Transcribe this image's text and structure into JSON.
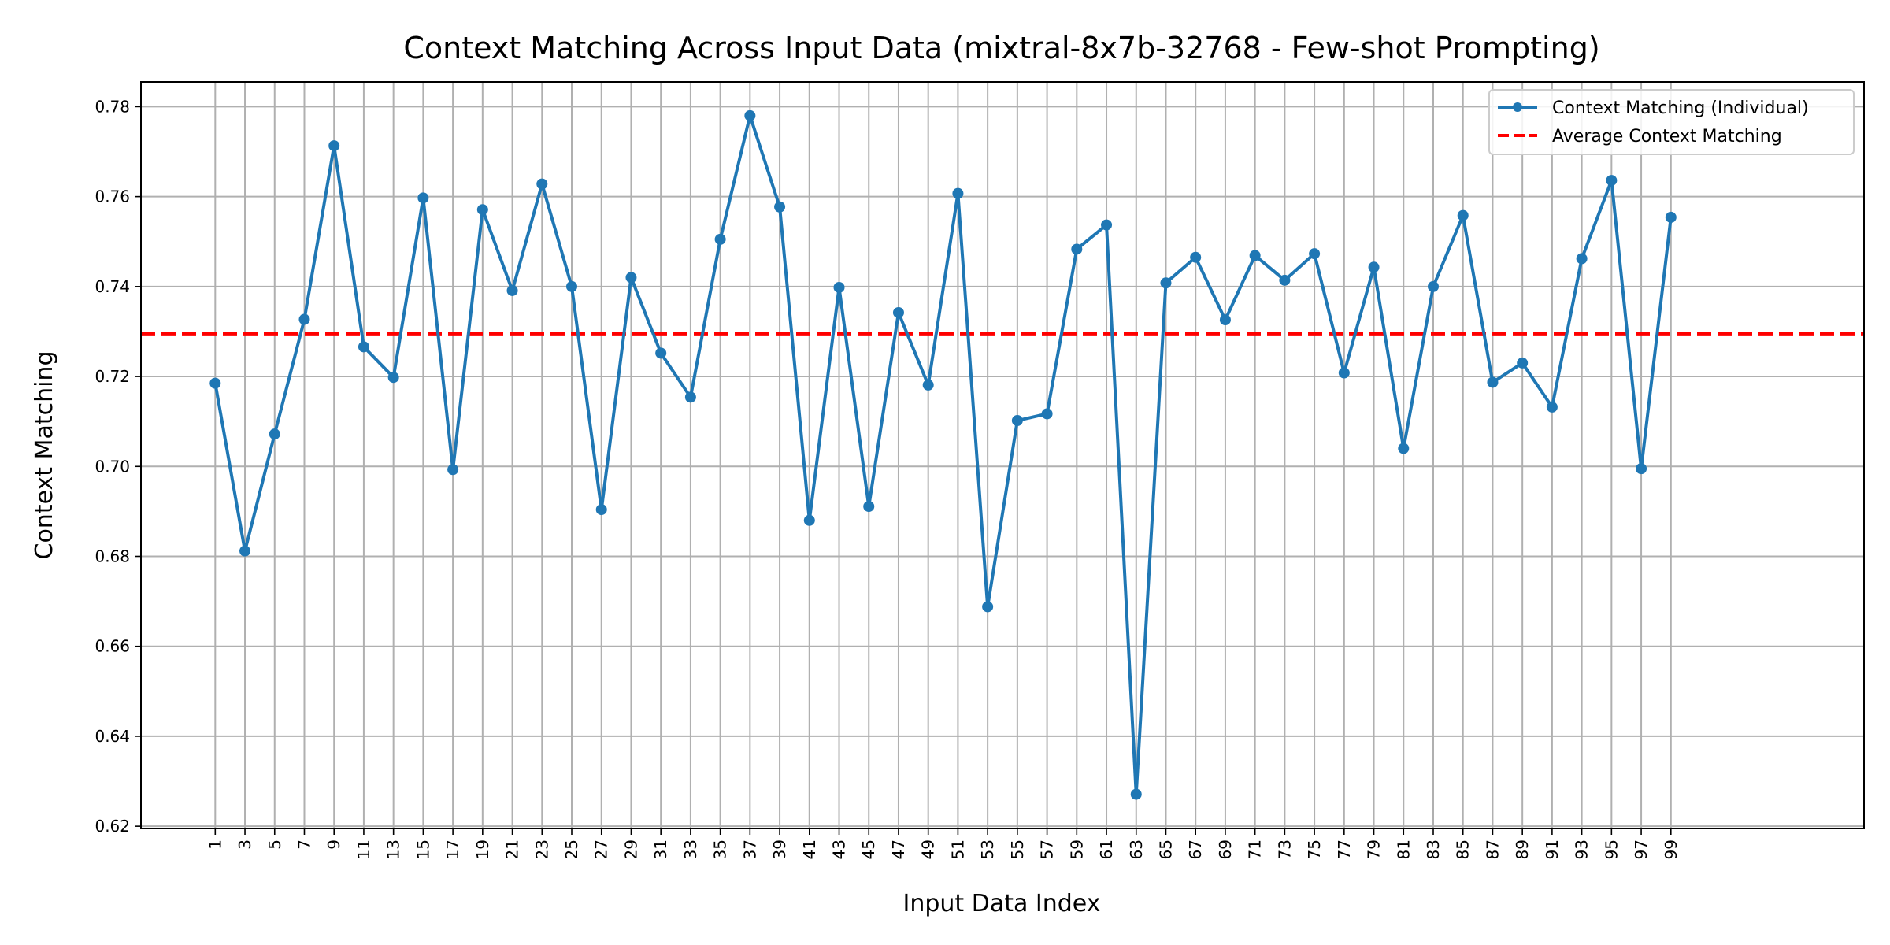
{
  "chart_data": {
    "type": "line",
    "title": "Context Matching Across Input Data (mixtral-8x7b-32768 - Few-shot Prompting)",
    "xlabel": "Input Data Index",
    "ylabel": "Context Matching",
    "x_tick_labels": [
      "1",
      "3",
      "5",
      "7",
      "9",
      "11",
      "13",
      "15",
      "17",
      "19",
      "21",
      "23",
      "25",
      "27",
      "29",
      "31",
      "33",
      "35",
      "37",
      "39",
      "41",
      "43",
      "45",
      "47",
      "49",
      "51",
      "53",
      "55",
      "57",
      "59",
      "61",
      "63",
      "65",
      "67",
      "69",
      "71",
      "73",
      "75",
      "77",
      "79",
      "81",
      "83",
      "85",
      "87",
      "89",
      "91",
      "93",
      "95",
      "97",
      "99"
    ],
    "y_tick_labels": [
      "0.62",
      "0.64",
      "0.66",
      "0.68",
      "0.70",
      "0.72",
      "0.74",
      "0.76",
      "0.78"
    ],
    "xlim": [
      -4.0,
      112.0
    ],
    "ylim": [
      0.6195,
      0.7855
    ],
    "grid": true,
    "legend_position": "top-right",
    "series": [
      {
        "name": "Context Matching (Individual)",
        "color": "#1f77b4",
        "marker": "circle",
        "x": [
          1,
          3,
          5,
          7,
          9,
          11,
          13,
          15,
          17,
          19,
          21,
          23,
          25,
          27,
          29,
          31,
          33,
          35,
          37,
          39,
          41,
          43,
          45,
          47,
          49,
          51,
          53,
          55,
          57,
          59,
          61,
          63,
          65,
          67,
          69,
          71,
          73,
          75,
          77,
          79,
          81,
          83,
          85,
          87,
          89,
          91,
          93,
          95,
          97,
          99
        ],
        "values": [
          0.7185,
          0.6812,
          0.7072,
          0.7327,
          0.7713,
          0.7266,
          0.7198,
          0.7597,
          0.6993,
          0.7571,
          0.7391,
          0.7628,
          0.74,
          0.6904,
          0.742,
          0.7252,
          0.7154,
          0.7505,
          0.778,
          0.7577,
          0.688,
          0.7398,
          0.6911,
          0.7342,
          0.7181,
          0.7607,
          0.6688,
          0.7102,
          0.7117,
          0.7483,
          0.7537,
          0.6271,
          0.7408,
          0.7465,
          0.7326,
          0.7469,
          0.7414,
          0.7473,
          0.7208,
          0.7443,
          0.704,
          0.74,
          0.7558,
          0.7187,
          0.723,
          0.7132,
          0.7462,
          0.7636,
          0.6995,
          0.7554
        ]
      }
    ],
    "reference_lines": [
      {
        "name": "Average Context Matching",
        "y": 0.7294,
        "color": "#ff0000",
        "style": "dashed"
      }
    ]
  }
}
